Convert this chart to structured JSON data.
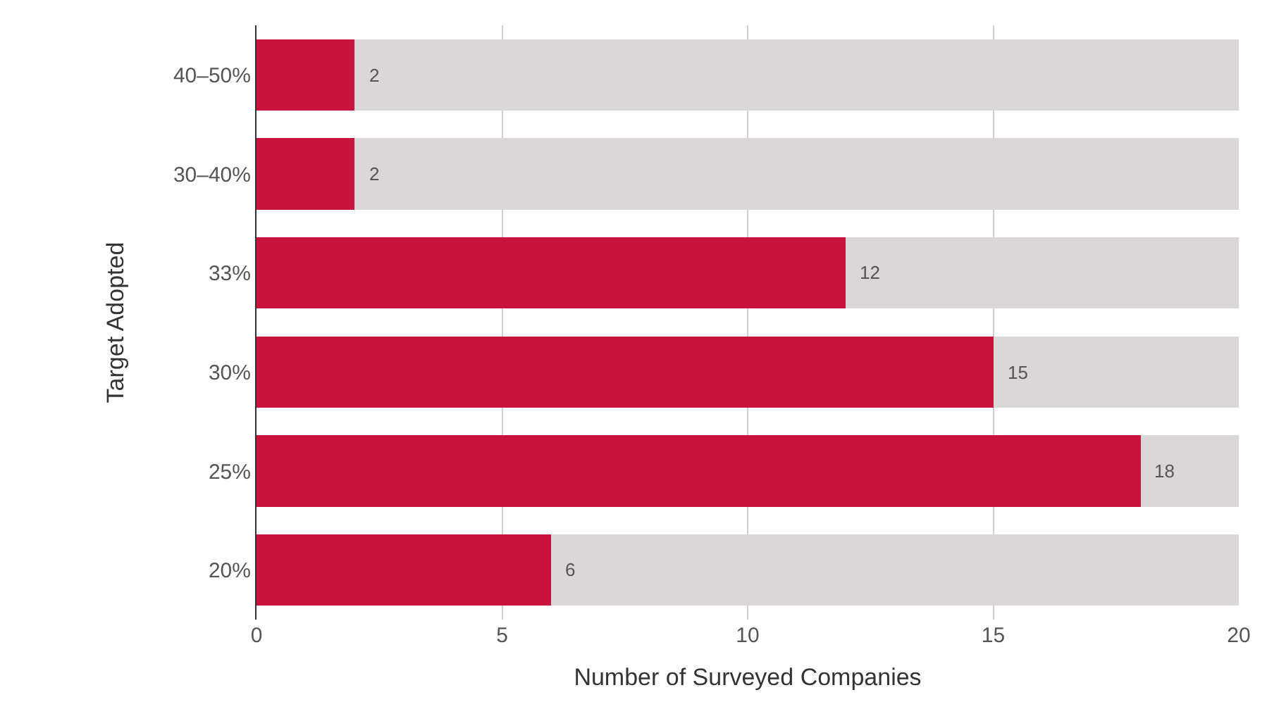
{
  "chart_data": {
    "type": "bar",
    "orientation": "horizontal",
    "stacked": true,
    "xlabel": "Number of Surveyed Companies",
    "ylabel": "Target Adopted",
    "categories": [
      "40–50%",
      "30–40%",
      "33%",
      "30%",
      "25%",
      "20%"
    ],
    "series": [
      {
        "color": "#c8143c",
        "values": [
          2,
          2,
          12,
          15,
          18,
          6
        ],
        "value_labels": [
          "2",
          "2",
          "12",
          "15",
          "18",
          "6"
        ]
      },
      {
        "color": "#d9d7d8",
        "values": [
          18,
          18,
          8,
          5,
          2,
          14
        ]
      }
    ],
    "xlim": [
      0,
      20
    ],
    "xticks": [
      0,
      5,
      10,
      15,
      20
    ],
    "grid": "x"
  }
}
